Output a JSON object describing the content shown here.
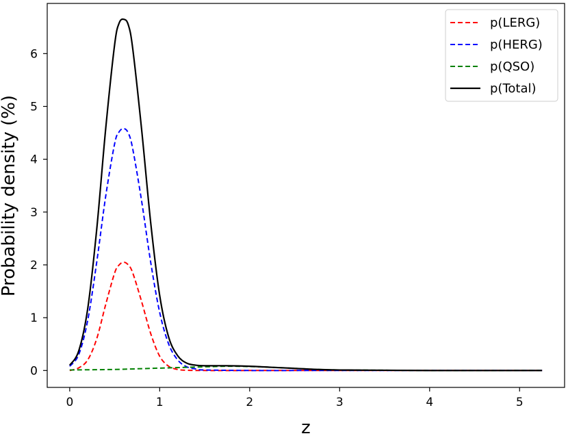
{
  "chart_data": {
    "type": "line",
    "xlabel": "z",
    "ylabel": "Probability density (%)",
    "xlim": [
      -0.25,
      5.5
    ],
    "ylim": [
      -0.32,
      6.95
    ],
    "xticks": [
      0,
      1,
      2,
      3,
      4,
      5
    ],
    "yticks": [
      0,
      1,
      2,
      3,
      4,
      5,
      6
    ],
    "grid": false,
    "legend_position": "top-right",
    "series": [
      {
        "name": "p(LERG)",
        "color": "#ff0000",
        "dash": "dashed",
        "x": [
          0,
          0.1,
          0.2,
          0.3,
          0.4,
          0.5,
          0.55,
          0.6,
          0.65,
          0.7,
          0.8,
          0.9,
          1.0,
          1.1,
          1.2,
          1.3,
          1.5,
          2.0,
          2.5,
          3.0,
          4.0,
          5.0,
          5.25
        ],
        "y": [
          0.0,
          0.05,
          0.2,
          0.6,
          1.25,
          1.85,
          2.0,
          2.05,
          2.0,
          1.85,
          1.3,
          0.7,
          0.27,
          0.08,
          0.02,
          0.005,
          0.0,
          0.0,
          0.0,
          0.0,
          0.0,
          0.0,
          0.0
        ]
      },
      {
        "name": "p(HERG)",
        "color": "#0000ff",
        "dash": "dashed",
        "x": [
          0,
          0.1,
          0.2,
          0.3,
          0.4,
          0.5,
          0.55,
          0.6,
          0.65,
          0.7,
          0.8,
          0.9,
          1.0,
          1.1,
          1.2,
          1.3,
          1.4,
          1.5,
          2.0,
          2.5,
          3.0,
          4.0,
          5.0,
          5.25
        ],
        "y": [
          0.08,
          0.3,
          0.95,
          2.05,
          3.3,
          4.3,
          4.52,
          4.58,
          4.5,
          4.2,
          3.2,
          2.05,
          1.1,
          0.5,
          0.2,
          0.07,
          0.03,
          0.01,
          0.0,
          0.0,
          0.0,
          0.0,
          0.0,
          0.0
        ]
      },
      {
        "name": "p(QSO)",
        "color": "#008000",
        "dash": "dashed",
        "x": [
          0,
          0.5,
          0.8,
          1.0,
          1.1,
          1.2,
          1.3,
          1.5,
          1.75,
          2.0,
          2.25,
          2.5,
          2.75,
          3.0,
          3.5,
          4.0,
          5.0,
          5.25
        ],
        "y": [
          0.01,
          0.02,
          0.035,
          0.045,
          0.05,
          0.055,
          0.06,
          0.07,
          0.08,
          0.075,
          0.06,
          0.04,
          0.02,
          0.01,
          0.005,
          0.0,
          0.0,
          0.0
        ]
      },
      {
        "name": "p(Total)",
        "color": "#000000",
        "dash": "solid",
        "x": [
          0,
          0.1,
          0.2,
          0.3,
          0.4,
          0.5,
          0.55,
          0.6,
          0.65,
          0.7,
          0.8,
          0.9,
          1.0,
          1.1,
          1.2,
          1.3,
          1.4,
          1.5,
          1.75,
          2.0,
          2.25,
          2.5,
          2.75,
          3.0,
          3.5,
          4.0,
          5.0,
          5.25
        ],
        "y": [
          0.1,
          0.37,
          1.17,
          2.67,
          4.58,
          6.18,
          6.58,
          6.65,
          6.55,
          6.1,
          4.55,
          2.8,
          1.42,
          0.63,
          0.28,
          0.14,
          0.1,
          0.09,
          0.09,
          0.08,
          0.06,
          0.04,
          0.02,
          0.01,
          0.005,
          0.0,
          0.0,
          0.0
        ]
      }
    ]
  }
}
